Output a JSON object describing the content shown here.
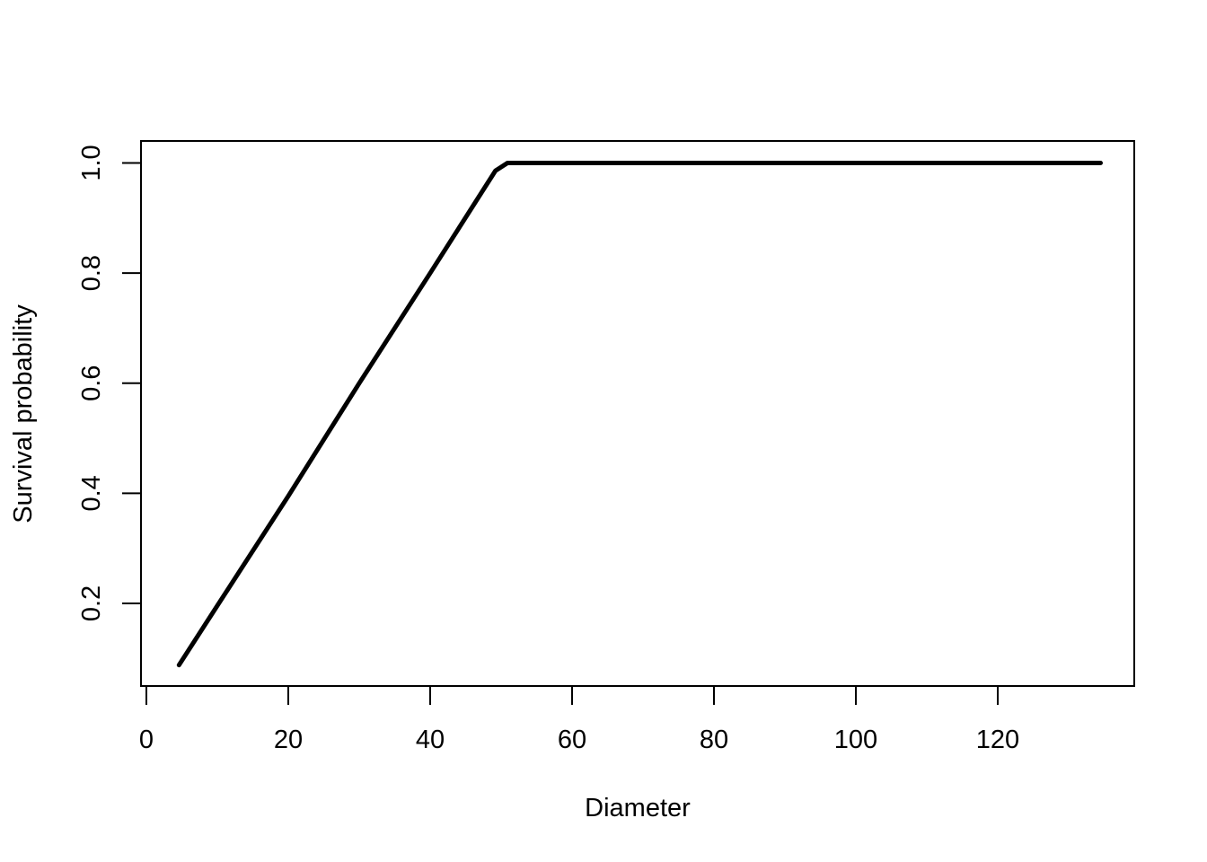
{
  "chart_data": {
    "type": "line",
    "title": "",
    "xlabel": "Diameter",
    "ylabel": "Survival probability",
    "xlim": [
      0,
      140
    ],
    "ylim": [
      0.05,
      1.04
    ],
    "x_ticks": [
      0,
      20,
      40,
      60,
      80,
      100,
      120
    ],
    "y_ticks": [
      0.2,
      0.4,
      0.6,
      0.8,
      1.0
    ],
    "x_tick_labels": [
      "0",
      "20",
      "40",
      "60",
      "80",
      "100",
      "120"
    ],
    "y_tick_labels": [
      "0.2",
      "0.4",
      "0.6",
      "0.8",
      "1.0"
    ],
    "grid": false,
    "series": [
      {
        "color": "#000000",
        "x": [
          4.6,
          10,
          20,
          30,
          40,
          49.2,
          50.9,
          60,
          80,
          100,
          120,
          134.5
        ],
        "y": [
          0.088,
          0.196,
          0.395,
          0.6,
          0.8,
          0.986,
          1.0,
          1.0,
          1.0,
          1.0,
          1.0,
          1.0
        ]
      }
    ]
  }
}
